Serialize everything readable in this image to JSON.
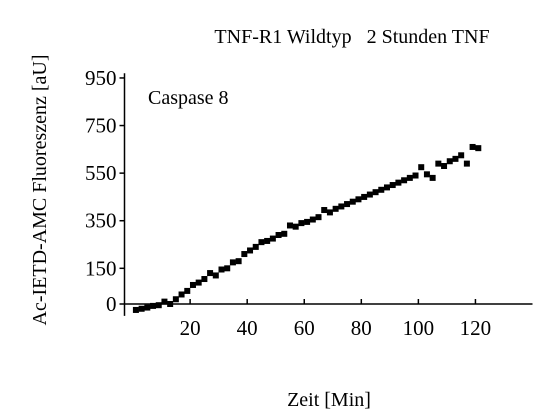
{
  "chart_data": {
    "type": "scatter",
    "title": "TNF-R1 Wildtyp   2 Stunden TNF",
    "annotation": "Caspase 8",
    "xlabel": "Zeit [Min]",
    "ylabel": "Ac-IETD-AMC Fluoreszenz [aU]",
    "x": [
      1,
      3,
      5,
      7,
      9,
      11,
      13,
      15,
      17,
      19,
      21,
      23,
      25,
      27,
      29,
      31,
      33,
      35,
      37,
      39,
      41,
      43,
      45,
      47,
      49,
      51,
      53,
      55,
      57,
      59,
      61,
      63,
      65,
      67,
      69,
      71,
      73,
      75,
      77,
      79,
      81,
      83,
      85,
      87,
      89,
      91,
      93,
      95,
      97,
      99,
      101,
      103,
      105,
      107,
      109,
      111,
      113,
      115,
      117,
      119,
      121
    ],
    "values": [
      -25,
      -20,
      -15,
      -8,
      -5,
      10,
      0,
      20,
      40,
      55,
      80,
      90,
      105,
      130,
      120,
      145,
      150,
      175,
      180,
      210,
      225,
      240,
      260,
      265,
      275,
      290,
      295,
      330,
      325,
      340,
      345,
      355,
      365,
      395,
      385,
      400,
      410,
      420,
      430,
      440,
      450,
      460,
      470,
      480,
      490,
      500,
      510,
      520,
      530,
      540,
      575,
      545,
      530,
      590,
      580,
      600,
      610,
      625,
      590,
      660,
      655
    ],
    "color": "#000000",
    "xlim": [
      -3,
      140
    ],
    "ylim": [
      -50,
      970
    ],
    "xticks": [
      20,
      40,
      60,
      80,
      100,
      120
    ],
    "yticks": [
      0,
      150,
      350,
      550,
      750,
      950
    ]
  }
}
